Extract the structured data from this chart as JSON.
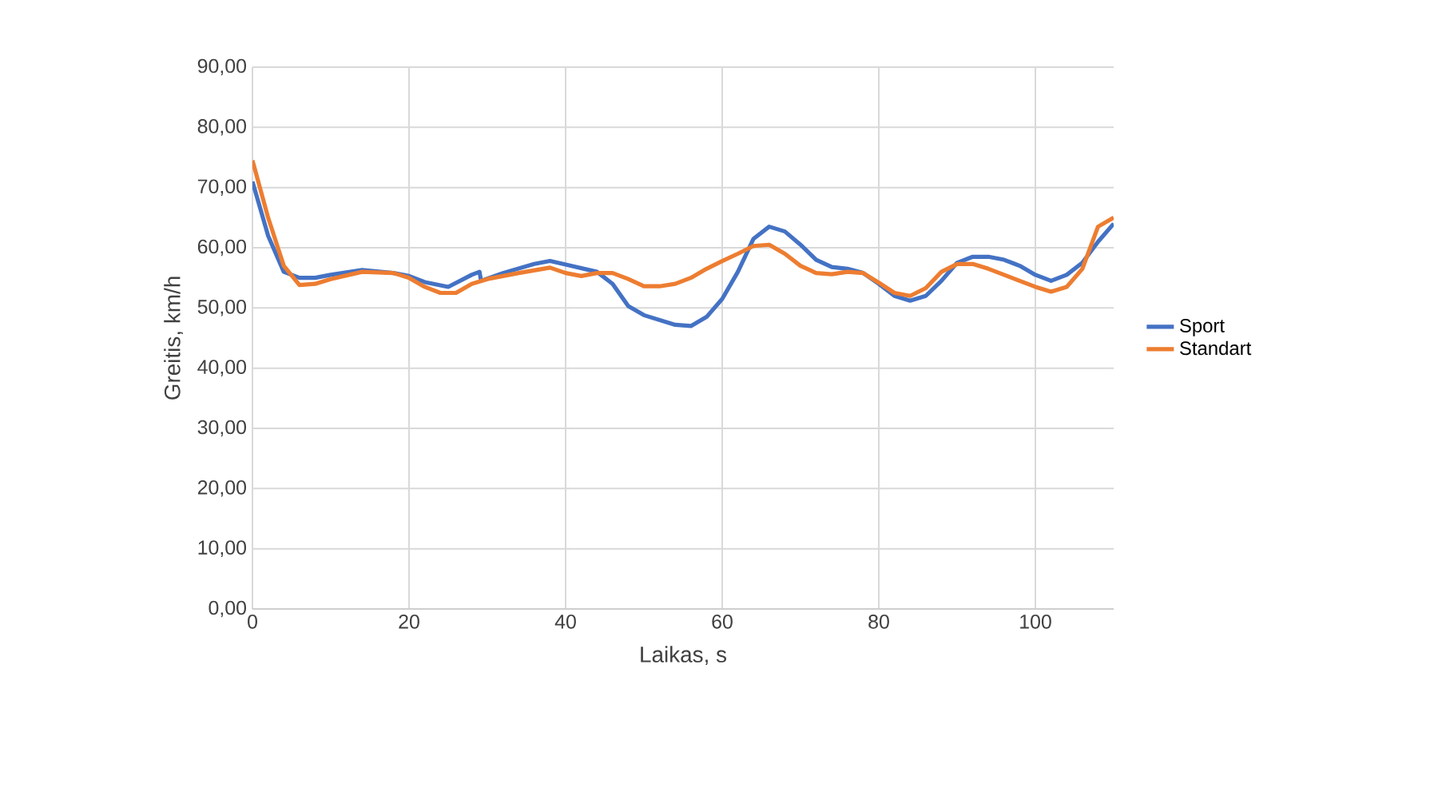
{
  "chart_data": {
    "type": "line",
    "xlabel": "Laikas, s",
    "ylabel": "Greitis, km/h",
    "xlim": [
      0,
      110
    ],
    "xticks": [
      0,
      20,
      40,
      60,
      80,
      100
    ],
    "ylim": [
      0,
      90
    ],
    "yticks": [
      {
        "value": 0,
        "label": "0,00"
      },
      {
        "value": 10,
        "label": "10,00"
      },
      {
        "value": 20,
        "label": "20,00"
      },
      {
        "value": 30,
        "label": "30,00"
      },
      {
        "value": 40,
        "label": "40,00"
      },
      {
        "value": 50,
        "label": "50,00"
      },
      {
        "value": 60,
        "label": "60,00"
      },
      {
        "value": 70,
        "label": "70,00"
      },
      {
        "value": 80,
        "label": "80,00"
      },
      {
        "value": 90,
        "label": "90,00"
      }
    ],
    "grid": true,
    "legend": "right",
    "marker": "none",
    "series": [
      {
        "name": "Sport",
        "color": "#4472c4",
        "x": [
          0,
          2,
          4,
          6,
          8,
          10,
          14,
          18,
          20,
          22,
          25,
          28,
          29,
          29.2,
          32,
          36,
          38,
          40,
          44,
          46,
          48,
          50,
          54,
          56,
          58,
          60,
          62,
          64,
          66,
          68,
          70,
          72,
          74,
          76,
          78,
          80,
          82,
          84,
          86,
          88,
          90,
          92,
          94,
          96,
          98,
          100,
          102,
          104,
          106,
          108,
          110
        ],
        "values": [
          71,
          62,
          56,
          55,
          55,
          55.5,
          56.3,
          55.8,
          55.3,
          54.3,
          53.5,
          55.5,
          56,
          54.5,
          55.8,
          57.3,
          57.8,
          57.2,
          56,
          54,
          50.3,
          48.8,
          47.2,
          47,
          48.5,
          51.5,
          56,
          61.5,
          63.5,
          62.7,
          60.5,
          58,
          56.8,
          56.5,
          55.8,
          54,
          52,
          51.2,
          52,
          54.5,
          57.5,
          58.5,
          58.5,
          58,
          57,
          55.5,
          54.5,
          55.5,
          57.5,
          61,
          64
        ]
      },
      {
        "name": "Standart",
        "color": "#ed7d31",
        "x": [
          0,
          2,
          4,
          6,
          8,
          10,
          14,
          18,
          20,
          22,
          24,
          26,
          28,
          30,
          34,
          38,
          40,
          42,
          44,
          46,
          48,
          50,
          52,
          54,
          56,
          58,
          60,
          62,
          64,
          66,
          68,
          70,
          72,
          74,
          76,
          78,
          80,
          82,
          84,
          86,
          88,
          90,
          92,
          94,
          96,
          98,
          100,
          102,
          104,
          106,
          108,
          110
        ],
        "values": [
          74.5,
          65,
          57,
          53.8,
          54,
          54.8,
          56,
          55.8,
          55,
          53.5,
          52.5,
          52.5,
          54,
          54.8,
          55.8,
          56.7,
          55.8,
          55.3,
          55.8,
          55.8,
          54.8,
          53.6,
          53.6,
          54,
          55,
          56.5,
          57.8,
          59,
          60.3,
          60.5,
          59,
          57,
          55.8,
          55.6,
          56,
          55.8,
          54.2,
          52.5,
          52,
          53.3,
          56,
          57.3,
          57.3,
          56.5,
          55.5,
          54.5,
          53.5,
          52.7,
          53.5,
          56.5,
          63.5,
          65
        ]
      }
    ]
  }
}
